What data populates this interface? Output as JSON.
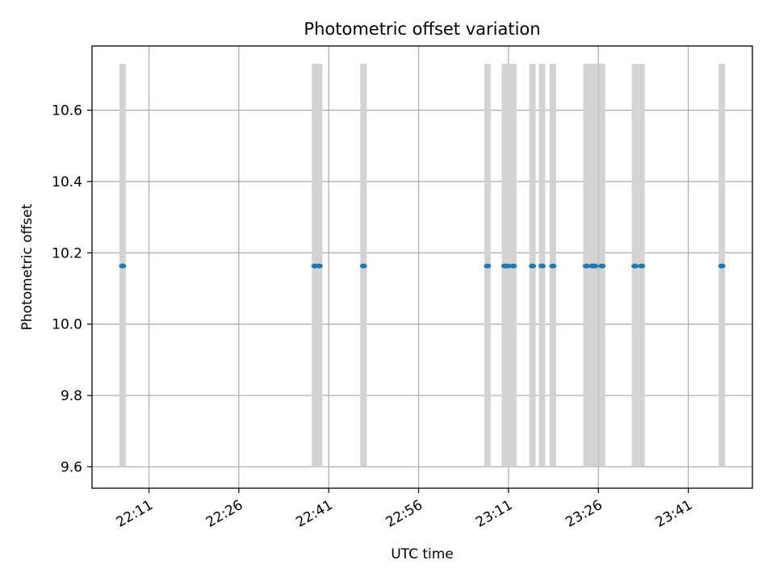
{
  "chart_data": {
    "type": "scatter",
    "title": "Photometric offset variation",
    "xlabel": "UTC time",
    "ylabel": "Photometric offset",
    "x_ticks": [
      "22:11",
      "22:26",
      "22:41",
      "22:56",
      "23:11",
      "23:26",
      "23:41"
    ],
    "x_tick_minutes": [
      1331,
      1346,
      1361,
      1376,
      1391,
      1406,
      1421
    ],
    "xlim": [
      "22:01.5",
      "23:51.7"
    ],
    "xlim_minutes": [
      1321.5,
      1431.7
    ],
    "y_ticks": [
      "9.6",
      "9.8",
      "10.0",
      "10.2",
      "10.4",
      "10.6"
    ],
    "y_tick_values": [
      9.6,
      9.8,
      10.0,
      10.2,
      10.4,
      10.6
    ],
    "ylim": [
      9.54,
      10.78
    ],
    "grid": true,
    "series": [
      {
        "marker_color": "#1f77b4",
        "band_color": "#d3d3d3",
        "band_range": [
          9.6,
          10.73
        ],
        "times": [
          "22:06.6",
          "22:38.7",
          "22:39.4",
          "22:46.8",
          "23:07.5",
          "23:10.4",
          "23:10.9",
          "23:11.8",
          "23:15.0",
          "23:16.6",
          "23:18.4",
          "23:24.0",
          "23:25.0",
          "23:25.4",
          "23:26.6",
          "23:32.1",
          "23:33.2",
          "23:46.6"
        ],
        "x_minutes": [
          1326.6,
          1358.7,
          1359.4,
          1366.8,
          1387.5,
          1390.4,
          1390.9,
          1391.8,
          1395.0,
          1396.6,
          1398.4,
          1404.0,
          1405.0,
          1405.4,
          1406.6,
          1412.1,
          1413.2,
          1426.6
        ],
        "y_value": 10.163
      }
    ]
  }
}
